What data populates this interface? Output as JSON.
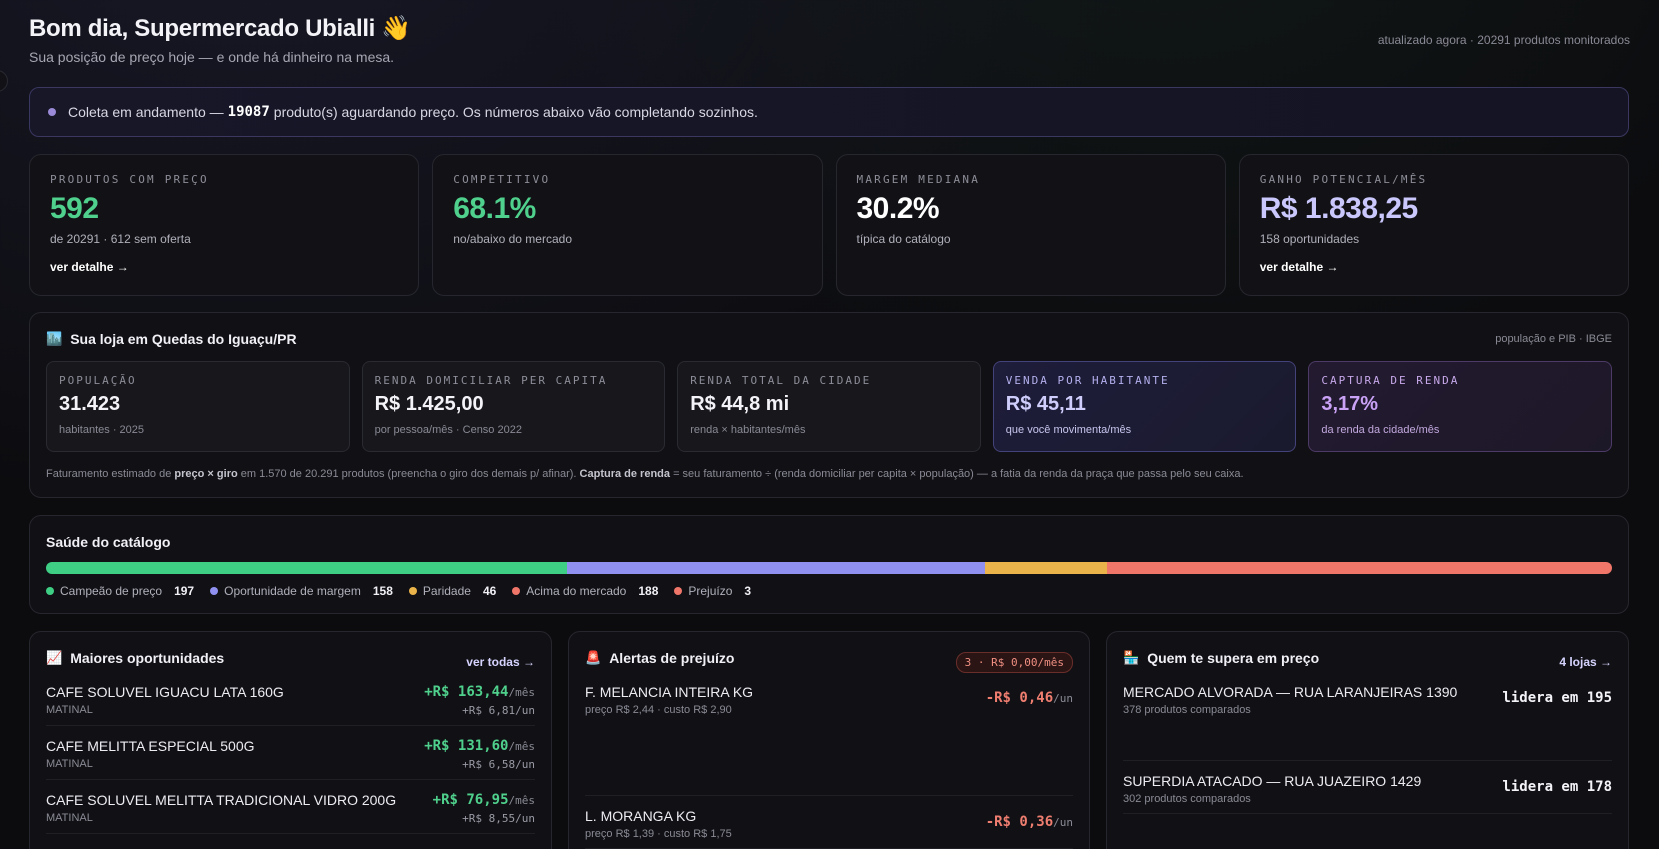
{
  "header": {
    "title": "Bom dia, Supermercado Ubialli 👋",
    "subtitle": "Sua posição de preço hoje — e onde há dinheiro na mesa.",
    "meta": "atualizado agora · 20291 produtos monitorados"
  },
  "banner": {
    "prefix": "Coleta em andamento —",
    "count": "19087",
    "suffix": "produto(s) aguardando preço. Os números abaixo vão completando sozinhos."
  },
  "kpis": [
    {
      "label": "PRODUTOS COM PREÇO",
      "value": "592",
      "sub": "de 20291 · 612 sem oferta",
      "link": "ver detalhe →",
      "color": "#4fd08c"
    },
    {
      "label": "COMPETITIVO",
      "value": "68.1%",
      "sub": "no/abaixo do mercado",
      "link": "",
      "color": "#4fd08c"
    },
    {
      "label": "MARGEM MEDIANA",
      "value": "30.2%",
      "sub": "típica do catálogo",
      "link": "",
      "color": "#ffffff"
    },
    {
      "label": "GANHO POTENCIAL/MÊS",
      "value": "R$ 1.838,25",
      "sub": "158 oportunidades",
      "link": "ver detalhe →",
      "color": "#c9c7fb"
    }
  ],
  "loja": {
    "title": "Sua loja em Quedas do Iguaçu/PR",
    "meta": "população e PIB · IBGE",
    "stats": [
      {
        "label": "POPULAÇÃO",
        "value": "31.423",
        "sub": "habitantes · 2025"
      },
      {
        "label": "RENDA DOMICILIAR PER CAPITA",
        "value": "R$ 1.425,00",
        "sub": "por pessoa/mês · Censo 2022"
      },
      {
        "label": "RENDA TOTAL DA CIDADE",
        "value": "R$ 44,8 mi",
        "sub": "renda × habitantes/mês"
      },
      {
        "label": "VENDA POR HABITANTE",
        "value": "R$ 45,11",
        "sub": "que você movimenta/mês"
      },
      {
        "label": "CAPTURA DE RENDA",
        "value": "3,17%",
        "sub": "da renda da cidade/mês"
      }
    ],
    "footnote": {
      "p1": "Faturamento estimado de",
      "b1": "preço × giro",
      "p2": "em 1.570 de 20.291 produtos (preencha o giro dos demais p/ afinar).",
      "b2": "Captura de renda",
      "p3": "= seu faturamento ÷ (renda domiciliar per capita × população) — a fatia da renda da praça que passa pelo seu caixa."
    }
  },
  "saude": {
    "title": "Saúde do catálogo",
    "segments": [
      {
        "name": "Campeão de preço",
        "count": "197",
        "value": 197,
        "color": "#3ecf84"
      },
      {
        "name": "Oportunidade de margem",
        "count": "158",
        "value": 158,
        "color": "#8f90f0"
      },
      {
        "name": "Paridade",
        "count": "46",
        "value": 46,
        "color": "#eab44a"
      },
      {
        "name": "Acima do mercado",
        "count": "188",
        "value": 188,
        "color": "#f0766a"
      },
      {
        "name": "Prejuízo",
        "count": "3",
        "value": 3,
        "color": "#f0766a"
      }
    ]
  },
  "oportunidades": {
    "title": "Maiores oportunidades",
    "link": "ver todas →",
    "rows": [
      {
        "name": "CAFE SOLUVEL IGUACU LATA 160G",
        "brand": "MATINAL",
        "amount": "+R$ 163,44",
        "unit": "/mês",
        "per": "+R$ 6,81/un"
      },
      {
        "name": "CAFE MELITTA ESPECIAL 500G",
        "brand": "MATINAL",
        "amount": "+R$ 131,60",
        "unit": "/mês",
        "per": "+R$ 6,58/un"
      },
      {
        "name": "CAFE SOLUVEL MELITTA TRADICIONAL VIDRO 200G",
        "brand": "MATINAL",
        "amount": "+R$ 76,95",
        "unit": "/mês",
        "per": "+R$ 8,55/un"
      }
    ]
  },
  "alertas": {
    "title": "Alertas de prejuízo",
    "badge": "3 · R$ 0,00/mês",
    "rows": [
      {
        "name": "F. MELANCIA INTEIRA KG",
        "detail": "preço R$ 2,44 · custo R$ 2,90",
        "amount": "-R$ 0,46",
        "unit": "/un"
      },
      {
        "name": "L. MORANGA KG",
        "detail": "preço R$ 1,39 · custo R$ 1,75",
        "amount": "-R$ 0,36",
        "unit": "/un"
      }
    ]
  },
  "concorrentes": {
    "title": "Quem te supera em preço",
    "link": "4 lojas →",
    "rows": [
      {
        "name": "MERCADO ALVORADA — RUA LARANJEIRAS 1390",
        "detail": "378 produtos comparados",
        "lead": "lidera em 195"
      },
      {
        "name": "SUPERDIA ATACADO — RUA JUAZEIRO 1429",
        "detail": "302 produtos comparados",
        "lead": "lidera em 178"
      }
    ]
  }
}
